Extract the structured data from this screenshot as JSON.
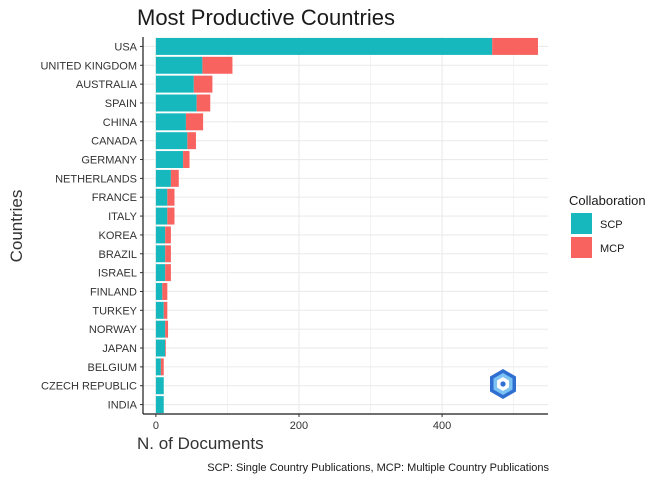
{
  "chart_data": {
    "type": "bar",
    "orientation": "horizontal",
    "stacked": true,
    "title": "Most Productive Countries",
    "xlabel": "N. of Documents",
    "ylabel": "Countries",
    "caption": "SCP: Single Country Publications, MCP: Multiple Country Publications",
    "xlim": [
      -18,
      548
    ],
    "x_ticks": [
      0,
      200,
      400
    ],
    "grid": true,
    "legend": {
      "title": "Collaboration",
      "position": "right"
    },
    "categories": [
      "USA",
      "UNITED KINGDOM",
      "AUSTRALIA",
      "SPAIN",
      "CHINA",
      "CANADA",
      "GERMANY",
      "NETHERLANDS",
      "FRANCE",
      "ITALY",
      "KOREA",
      "BRAZIL",
      "ISRAEL",
      "FINLAND",
      "TURKEY",
      "NORWAY",
      "JAPAN",
      "BELGIUM",
      "CZECH REPUBLIC",
      "INDIA"
    ],
    "series": [
      {
        "name": "SCP",
        "color": "#17B8BD",
        "values": [
          470,
          65,
          53,
          57,
          42,
          44,
          38,
          21,
          16,
          16,
          13,
          13,
          13,
          9,
          11,
          13,
          13,
          7,
          11,
          11
        ]
      },
      {
        "name": "MCP",
        "color": "#F8635F",
        "values": [
          64,
          42,
          26,
          19,
          24,
          12,
          9,
          11,
          10,
          10,
          8,
          8,
          8,
          7,
          5,
          4,
          1,
          4,
          0,
          0
        ]
      }
    ]
  },
  "logo": {
    "name": "bibliometrix-logo",
    "colors": [
      "#2F6FD1",
      "#7CC2F2"
    ]
  }
}
